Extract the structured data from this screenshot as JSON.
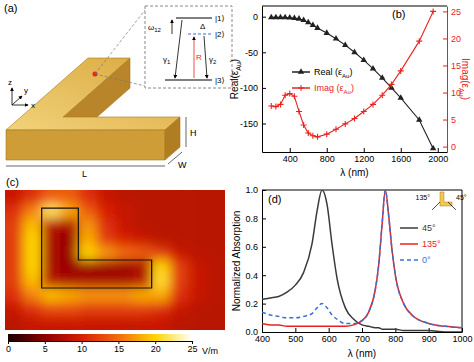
{
  "figure": {
    "panel_labels": [
      "(a)",
      "(b)",
      "(c)",
      "(d)"
    ],
    "panel_a": {
      "axes": [
        "z",
        "x",
        "y"
      ],
      "dimensions": [
        "L",
        "H",
        "W"
      ],
      "levels": [
        "|1⟩",
        "|2⟩",
        "|3⟩"
      ],
      "symbols": [
        "ω12",
        "Δ",
        "γ1",
        "γ2",
        "R"
      ]
    }
  },
  "chart_data": [
    {
      "type": "line",
      "xlabel": "λ (nm)",
      "ylabel": "Real(εAu)",
      "y2label": "Imag(εAu)",
      "x": [
        200,
        250,
        300,
        350,
        400,
        450,
        500,
        550,
        600,
        650,
        700,
        800,
        900,
        1000,
        1100,
        1200,
        1300,
        1400,
        1500,
        1600,
        1800,
        1950
      ],
      "xlim": [
        100,
        2100
      ],
      "xticks": [
        400,
        800,
        1200,
        1600,
        2000
      ],
      "ylim": [
        -190,
        15
      ],
      "yticks": [
        -150,
        -100,
        -50,
        0
      ],
      "y2lim": [
        -1,
        26
      ],
      "y2ticks": [
        0,
        5,
        10,
        15,
        20,
        25
      ],
      "legend": "top",
      "series": [
        {
          "name": "Real (εAu)",
          "color": "#222222",
          "marker": "triangle",
          "line_style": "solid",
          "values": [
            -1,
            -1,
            -1,
            -1,
            -1.5,
            -2,
            -3,
            -5,
            -8,
            -12,
            -16,
            -23,
            -31,
            -40,
            -50,
            -61,
            -73,
            -86,
            -100,
            -114,
            -145,
            -185
          ]
        },
        {
          "name": "Imag (εAu)",
          "color": "#e8231f",
          "marker": "plus",
          "line_style": "solid",
          "axis": "y2",
          "values": [
            7.5,
            7.4,
            7.8,
            9.5,
            9.8,
            9.3,
            6.5,
            4.0,
            2.5,
            2.0,
            1.8,
            2.3,
            3.2,
            4.2,
            5.2,
            6.5,
            7.8,
            9.5,
            11.5,
            14,
            19.5,
            25
          ]
        }
      ]
    },
    {
      "type": "heatmap",
      "tick_labels": false,
      "cells": [
        [
          9,
          11,
          14,
          14,
          11,
          9,
          8,
          8,
          8,
          8,
          8,
          8
        ],
        [
          11,
          16,
          22,
          18,
          14,
          10,
          9,
          8,
          8,
          8,
          8,
          8
        ],
        [
          12,
          19,
          8,
          7,
          17,
          11,
          9,
          8,
          8,
          8,
          8,
          8
        ],
        [
          12,
          20,
          7,
          6,
          18,
          12,
          10,
          9,
          8,
          8,
          8,
          8
        ],
        [
          12,
          20,
          7,
          6,
          20,
          17,
          15,
          14,
          12,
          9,
          8,
          8
        ],
        [
          12,
          20,
          7,
          6,
          6,
          6,
          6,
          7,
          20,
          12,
          9,
          8
        ],
        [
          12,
          19,
          8,
          7,
          7,
          7,
          7,
          8,
          21,
          12,
          9,
          8
        ],
        [
          11,
          16,
          19,
          18,
          17,
          17,
          17,
          18,
          18,
          11,
          9,
          8
        ],
        [
          9,
          11,
          13,
          13,
          12,
          12,
          12,
          12,
          11,
          9,
          8,
          8
        ],
        [
          8,
          9,
          9,
          9,
          9,
          9,
          9,
          9,
          9,
          8,
          8,
          8
        ]
      ],
      "color_range": [
        0,
        25
      ],
      "color_ticks": [
        0,
        5,
        10,
        15,
        20,
        25
      ],
      "colorbar_label": "V/m"
    },
    {
      "type": "line",
      "xlabel": "λ (nm)",
      "ylabel": "Normalized Absorption",
      "x": [
        400,
        425,
        450,
        475,
        500,
        525,
        550,
        565,
        580,
        595,
        610,
        625,
        650,
        675,
        700,
        720,
        740,
        750,
        760,
        770,
        780,
        790,
        800,
        825,
        850,
        900,
        950,
        1000
      ],
      "xlim": [
        400,
        1000
      ],
      "xticks": [
        400,
        500,
        600,
        700,
        800,
        900,
        1000
      ],
      "ylim": [
        0,
        1
      ],
      "yticks": [
        {
          "value": 0,
          "label": "0.0"
        },
        {
          "value": 0.2,
          "label": "0.2"
        },
        {
          "value": 0.4,
          "label": "0.4"
        },
        {
          "value": 0.6,
          "label": "0.6"
        },
        {
          "value": 0.8,
          "label": "0.8"
        },
        {
          "value": 1,
          "label": "1.0"
        }
      ],
      "legend": "right",
      "annotations": [
        "135°",
        "45°"
      ],
      "series": [
        {
          "name": "45°",
          "color": "#3a3a3a",
          "line_style": "solid",
          "values": [
            0.23,
            0.24,
            0.25,
            0.28,
            0.33,
            0.42,
            0.62,
            0.85,
            1.0,
            0.9,
            0.62,
            0.38,
            0.17,
            0.09,
            0.05,
            0.04,
            0.03,
            0.03,
            0.02,
            0.02,
            0.02,
            0.02,
            0.02,
            0.01,
            0.01,
            0.01,
            0.0,
            0.0
          ]
        },
        {
          "name": "135°",
          "color": "#e8231f",
          "line_style": "solid",
          "values": [
            0.06,
            0.05,
            0.05,
            0.04,
            0.04,
            0.04,
            0.04,
            0.04,
            0.04,
            0.04,
            0.04,
            0.04,
            0.04,
            0.05,
            0.08,
            0.14,
            0.3,
            0.47,
            0.75,
            1.0,
            0.82,
            0.58,
            0.4,
            0.2,
            0.12,
            0.06,
            0.04,
            0.03
          ]
        },
        {
          "name": "0°",
          "color": "#3b6fd6",
          "line_style": "dashed",
          "values": [
            0.14,
            0.12,
            0.11,
            0.1,
            0.1,
            0.11,
            0.13,
            0.17,
            0.2,
            0.17,
            0.12,
            0.09,
            0.06,
            0.06,
            0.08,
            0.14,
            0.3,
            0.47,
            0.75,
            1.0,
            0.82,
            0.58,
            0.4,
            0.2,
            0.12,
            0.06,
            0.04,
            0.03
          ]
        }
      ]
    }
  ]
}
